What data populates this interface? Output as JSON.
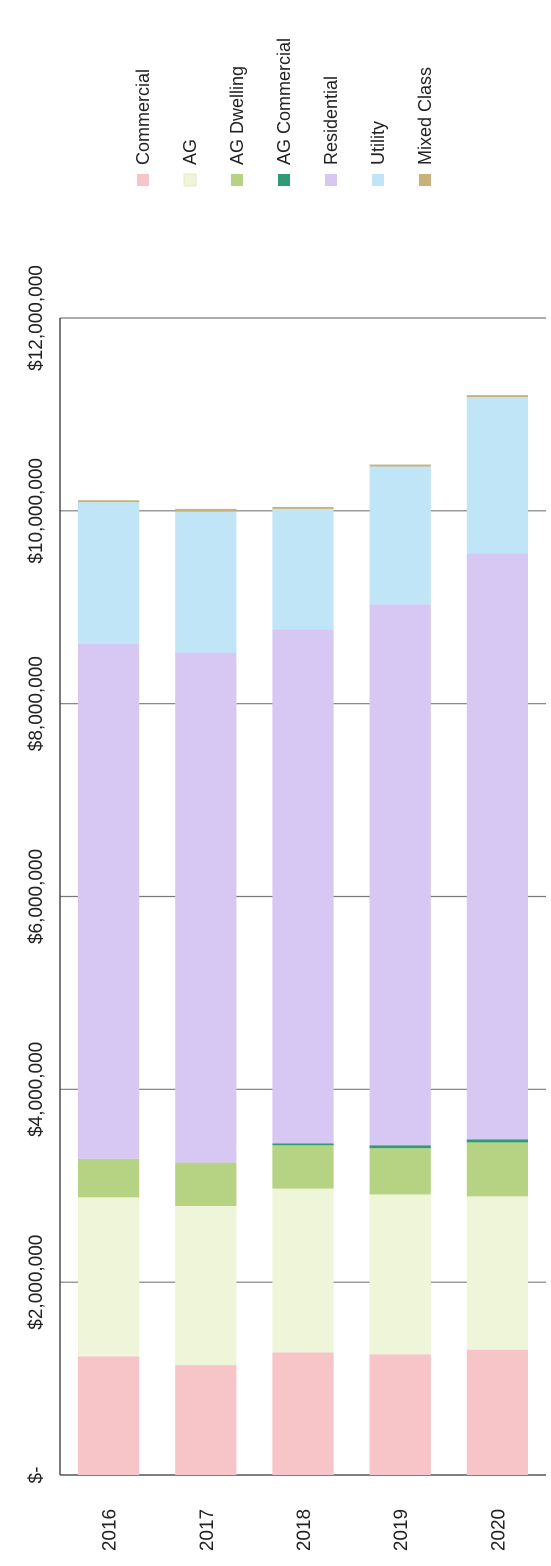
{
  "chart_data": {
    "type": "bar",
    "orientation": "stacked, rotated 90 degrees (value axis vertical on page, categories left-to-right)",
    "title": "",
    "xlabel": "",
    "ylabel": "",
    "categories": [
      "2016",
      "2017",
      "2018",
      "2019",
      "2020"
    ],
    "value_ticks": [
      {
        "value": 0,
        "label": "$-"
      },
      {
        "value": 2000000,
        "label": "$2,000,000"
      },
      {
        "value": 4000000,
        "label": "$4,000,000"
      },
      {
        "value": 6000000,
        "label": "$6,000,000"
      },
      {
        "value": 8000000,
        "label": "$8,000,000"
      },
      {
        "value": 10000000,
        "label": "$10,000,000"
      },
      {
        "value": 12000000,
        "label": "$12,000,000"
      }
    ],
    "ylim": [
      0,
      12000000
    ],
    "grid": true,
    "legend_position": "top",
    "series": [
      {
        "name": "Commercial",
        "color": "#f7c4c8",
        "values": [
          1230000,
          1140000,
          1270000,
          1250000,
          1300000
        ]
      },
      {
        "name": "AG",
        "color": "#eef5d8",
        "values": [
          1650000,
          1650000,
          1700000,
          1660000,
          1590000
        ]
      },
      {
        "name": "AG Dwelling",
        "color": "#b5d383",
        "values": [
          400000,
          450000,
          450000,
          480000,
          560000
        ]
      },
      {
        "name": "AG Commercial",
        "color": "#2e9a76",
        "values": [
          0,
          0,
          20000,
          30000,
          30000
        ]
      },
      {
        "name": "Residential",
        "color": "#d6c8f2",
        "values": [
          5340000,
          5290000,
          5330000,
          5610000,
          6080000
        ]
      },
      {
        "name": "Utility",
        "color": "#bfe5f6",
        "values": [
          1470000,
          1460000,
          1250000,
          1430000,
          1620000
        ]
      },
      {
        "name": "Mixed Class",
        "color": "#c8b27a",
        "values": [
          20000,
          30000,
          20000,
          20000,
          20000
        ]
      }
    ]
  }
}
